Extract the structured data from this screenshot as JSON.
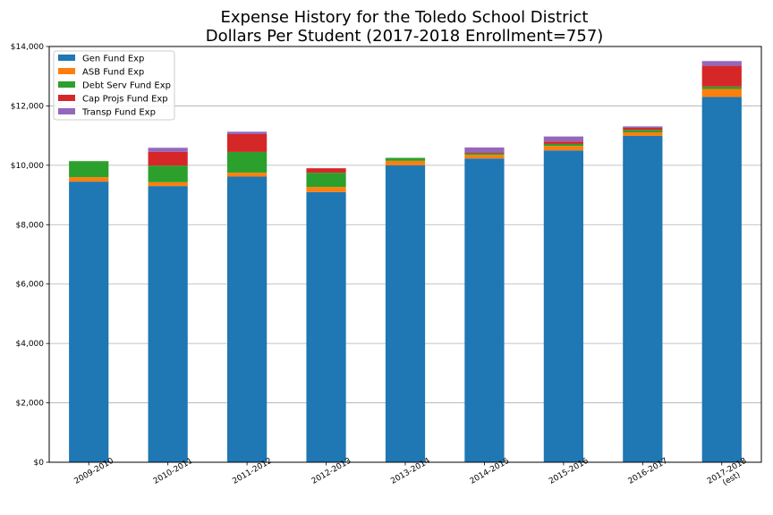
{
  "chart_data": {
    "type": "bar",
    "stacked": true,
    "title": [
      "Expense History for the Toledo School District",
      "Dollars Per Student (2017-2018 Enrollment=757)"
    ],
    "xlabel": "",
    "ylabel": "",
    "categories": [
      [
        "2009-2010"
      ],
      [
        "2010-2011"
      ],
      [
        "2011-2012"
      ],
      [
        "2012-2013"
      ],
      [
        "2013-2014"
      ],
      [
        "2014-2015"
      ],
      [
        "2015-2016"
      ],
      [
        "2016-2017"
      ],
      [
        "2017-2018",
        "(est)"
      ]
    ],
    "ylim": [
      0,
      14000
    ],
    "yticks": [
      0,
      2000,
      4000,
      6000,
      8000,
      10000,
      12000,
      14000
    ],
    "ytick_labels": [
      "$0",
      "$2,000",
      "$4,000",
      "$6,000",
      "$8,000",
      "$10,000",
      "$12,000",
      "$14,000"
    ],
    "grid": "y",
    "legend_position": "top-left",
    "series": [
      {
        "name": "Gen Fund Exp",
        "color": "#1f77b4",
        "values": [
          9450,
          9300,
          9620,
          9100,
          10000,
          10230,
          10500,
          10990,
          12300
        ]
      },
      {
        "name": "ASB Fund Exp",
        "color": "#ff7f0e",
        "values": [
          150,
          130,
          130,
          170,
          150,
          120,
          150,
          120,
          270
        ]
      },
      {
        "name": "Debt Serv Fund Exp",
        "color": "#2ca02c",
        "values": [
          540,
          560,
          700,
          480,
          100,
          50,
          70,
          80,
          80
        ]
      },
      {
        "name": "Cap Projs Fund Exp",
        "color": "#d62728",
        "values": [
          0,
          460,
          600,
          150,
          0,
          30,
          80,
          70,
          700
        ]
      },
      {
        "name": "Transp Fund Exp",
        "color": "#9467bd",
        "values": [
          0,
          140,
          80,
          0,
          0,
          170,
          170,
          50,
          160
        ]
      }
    ]
  }
}
